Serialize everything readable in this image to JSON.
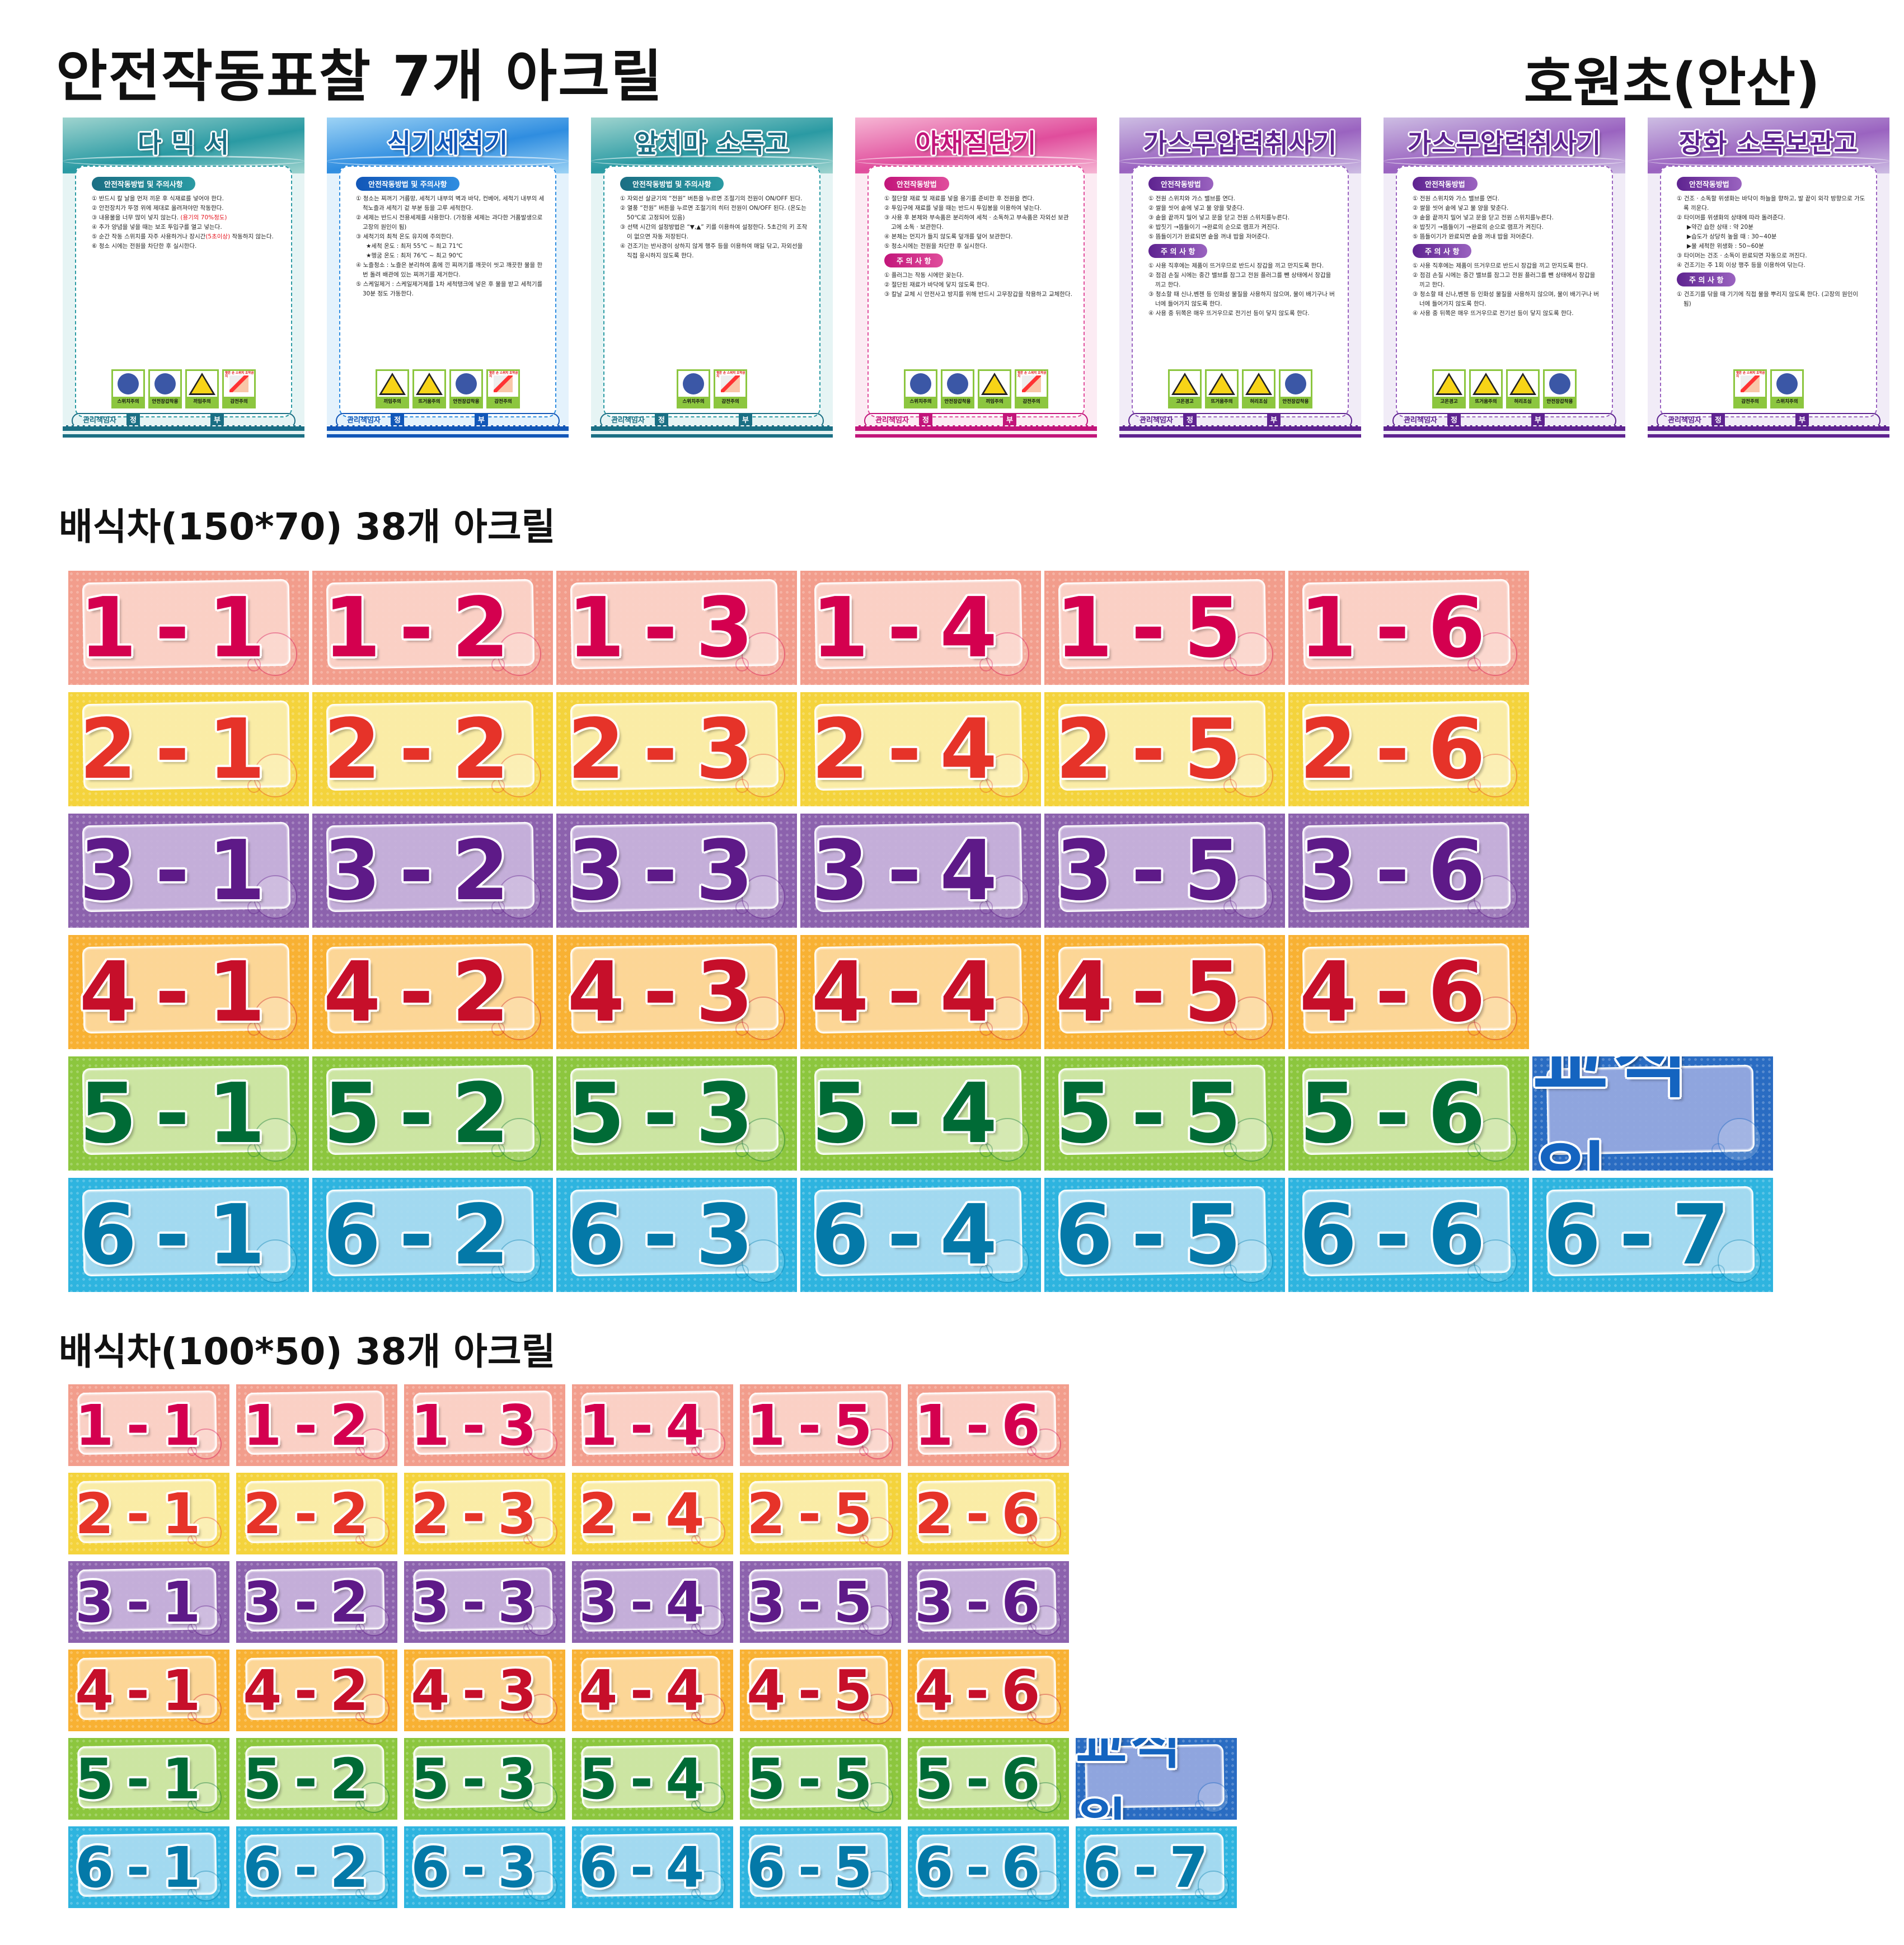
{
  "header": {
    "title": "안전작동표찰 7개 아크릴",
    "school": "호원초(안산)"
  },
  "poster_common": {
    "manager": "관리책임자",
    "primary": "정",
    "secondary": "부"
  },
  "posters": [
    {
      "title": "다 믹 서",
      "theme": {
        "dark": "#1b6f84",
        "mid": "#2a9aa3",
        "light": "#9fd4cf",
        "bg": "#e6f4f4"
      },
      "sections": [
        {
          "heading": "안전작동방법 및 주의사항",
          "items": [
            {
              "text": "① 반드시 칼 날을 먼저 끼운 후 식재료를 넣어야 한다."
            },
            {
              "text": "② 안전장치가 뚜껑 위에 제대로 올려져야만 작동한다."
            },
            {
              "text": "③ 내용물을 너무 많이 넣지 않는다. ",
              "red": "(용기의 70%정도)"
            },
            {
              "text": "④ 추가 양념을 넣을 때는 보조 투입구를 열고 넣는다."
            },
            {
              "text": "⑤ 순간 작동 스위치를 자주 사용하거나 장시간",
              "red": "(5초이상)",
              "tail": " 작동하지 않는다."
            },
            {
              "text": "⑥ 청소 시에는 전원을 차단한 후 실시한다."
            }
          ]
        }
      ],
      "icons": [
        {
          "label": "스위치주의",
          "type": "mandatory"
        },
        {
          "label": "안전장갑착용",
          "type": "mandatory"
        },
        {
          "label": "끼임주의",
          "type": "warning"
        },
        {
          "label": "감전주의",
          "type": "shock",
          "note": "젖은 손 스위치 조작금지"
        }
      ]
    },
    {
      "title": "식기세척기",
      "theme": {
        "dark": "#1257b8",
        "mid": "#2f8de0",
        "light": "#9dd3f5",
        "bg": "#e4f2fc"
      },
      "sections": [
        {
          "heading": "안전작동방법 및 주의사항",
          "items": [
            {
              "text": "① 청소는 찌꺼기 거름망, 세척기 내부의 벽과 바닥, 컨베어, 세척기 내부의 세척노즐과 세척기 겉 부분 등을 고루 세척한다."
            },
            {
              "text": "② 세제는 반드시 전용세제를 사용한다. (가정용 세제는 과다한 거품발생으로 고장의 원인이 됨)"
            },
            {
              "text": "③ 세척기의 최적 온도 유지에 주의한다."
            },
            {
              "text": "★세척 온도 : 최저 55℃ ~ 최고 71℃",
              "sub": true
            },
            {
              "text": "★헹굼 온도 : 최저 76℃ ~ 최고 90℃",
              "sub": true
            },
            {
              "text": "④ 노즐청소 : 노즐은 분리하여 홈에 낀 찌꺼기를 깨끗이 씻고 깨끗한 물을 한번 돌려 배관에 있는 찌꺼기를 제거한다."
            },
            {
              "text": "⑤ 스케일제거 : 스케일제거제를 1차 세척탱크에 넣은 후 물을 받고 세척기를 30분 정도 가동한다."
            }
          ]
        }
      ],
      "icons": [
        {
          "label": "끼임주의",
          "type": "warning"
        },
        {
          "label": "뜨거움주의",
          "type": "warning"
        },
        {
          "label": "안전장갑착용",
          "type": "mandatory"
        },
        {
          "label": "감전주의",
          "type": "shock",
          "note": "젖은 손 스위치 조작금지"
        }
      ]
    },
    {
      "title": "앞치마 소독고",
      "theme": {
        "dark": "#1b6f84",
        "mid": "#2a9aa3",
        "light": "#9fd4cf",
        "bg": "#e6f4f4"
      },
      "sections": [
        {
          "heading": "안전작동방법 및 주의사항",
          "items": [
            {
              "text": "① 자외선 살균기의 “전원” 버튼을 누르면 조절기의 전원이 ON/OFF 된다."
            },
            {
              "text": "② 열풍 “전원” 버튼을 누르면 조절기의 히터 전원이 ON/OFF 된다. (온도는 50℃로 고정되어 있음)"
            },
            {
              "text": "③ 선택 시간의 설정방법은 “▼,▲” 키를 이용하여 설정한다. 5초간의 키 조작이 없으면 자동 저장된다."
            },
            {
              "text": "④ 건조기는 반사경이 상하지 않게 행주 등을 이용하여 매일 닦고, 자외선을 직접 응시하지 않도록 한다."
            }
          ]
        }
      ],
      "icons": [
        {
          "label": "스위치주의",
          "type": "mandatory"
        },
        {
          "label": "감전주의",
          "type": "shock",
          "note": "젖은 손 스위치 조작금지"
        }
      ]
    },
    {
      "title": "야채절단기",
      "theme": {
        "dark": "#c2157a",
        "mid": "#e04d9c",
        "light": "#f6b6d4",
        "bg": "#fcebf3"
      },
      "sections": [
        {
          "heading": "안전작동방법",
          "items": [
            {
              "text": "① 절단할 재료 및 재료를 넣을 용기를 준비한 후 전원을 켠다."
            },
            {
              "text": "② 투입구에 재료를 넣을 때는 반드시 투입봉을 이용하여 넣는다."
            },
            {
              "text": "③ 사용 후 본체와 부속품은 분리하여 세척 · 소독하고 부속품은 자외선 보관고에 소독 · 보관한다."
            },
            {
              "text": "④ 본체는 먼지가 들지 않도록 덮개를 덮어 보관한다."
            },
            {
              "text": "⑤ 청소시에는 전원을 차단한 후 실시한다."
            }
          ]
        },
        {
          "heading": "주 의 사 항",
          "items": [
            {
              "text": "① 플러그는 작동 시에만 꽂는다."
            },
            {
              "text": "② 절단된 재료가 바닥에 닿지 않도록 한다."
            },
            {
              "text": "③ 칼날 교체 시 안전사고 방지를 위해 반드시 고무장갑을 착용하고 교체한다."
            }
          ]
        }
      ],
      "icons": [
        {
          "label": "스위치주의",
          "type": "mandatory"
        },
        {
          "label": "안전장갑착용",
          "type": "mandatory"
        },
        {
          "label": "끼임주의",
          "type": "warning"
        },
        {
          "label": "감전주의",
          "type": "shock",
          "note": "젖은 손 스위치 조작금지"
        }
      ]
    },
    {
      "title": "가스무압력취사기",
      "theme": {
        "dark": "#5e2390",
        "mid": "#9a63c0",
        "light": "#cdbde3",
        "bg": "#f1ecf7"
      },
      "sections": [
        {
          "heading": "안전작동방법",
          "items": [
            {
              "text": "① 전원 스위치와 가스 밸브를 연다."
            },
            {
              "text": "② 쌀을 씻어 솥에 넣고 물 양을 맞춘다."
            },
            {
              "text": "③ 솥을 끝까지 밀어 넣고 문을 닫고 전원 스위치를누른다."
            },
            {
              "text": "④ 밥짓기 →뜸들이기 →완료의 순으로 램프가 켜진다."
            },
            {
              "text": "⑤ 뜸들이기가 완료되면 솥을 꺼내 밥을 저어준다."
            }
          ]
        },
        {
          "heading": "주 의 사 항",
          "items": [
            {
              "text": "① 사용 직후에는 제품이 뜨거우므로 반드시 장갑을 끼고 만지도록 한다."
            },
            {
              "text": "② 점검 손질 시에는 중간 밸브를 잠그고 전원 플러그를 뺀 상태에서 장갑을 끼고 한다."
            },
            {
              "text": "③ 청소할 때 신나,벤젠 등 인화성 물질을 사용하지 않으며, 물이 배기구나 버너에 들어가지 않도록 한다."
            },
            {
              "text": "④ 사용 중 뒤쪽은 매우 뜨거우므로 전기선 등이 닿지 않도록 한다."
            }
          ]
        }
      ],
      "icons": [
        {
          "label": "고온경고",
          "type": "warning"
        },
        {
          "label": "뜨거움주의",
          "type": "warning"
        },
        {
          "label": "허리조심",
          "type": "warning"
        },
        {
          "label": "안전장갑착용",
          "type": "mandatory"
        }
      ]
    },
    {
      "title": "가스무압력취사기",
      "theme": {
        "dark": "#5e2390",
        "mid": "#9a63c0",
        "light": "#cdbde3",
        "bg": "#f1ecf7"
      },
      "sections": [
        {
          "heading": "안전작동방법",
          "items": [
            {
              "text": "① 전원 스위치와 가스 밸브를 연다."
            },
            {
              "text": "② 쌀을 씻어 솥에 넣고 물 양을 맞춘다."
            },
            {
              "text": "③ 솥을 끝까지 밀어 넣고 문을 닫고 전원 스위치를누른다."
            },
            {
              "text": "④ 밥짓기 →뜸들이기 →완료의 순으로 램프가 켜진다."
            },
            {
              "text": "⑤ 뜸들이기가 완료되면 솥을 꺼내 밥을 저어준다."
            }
          ]
        },
        {
          "heading": "주 의 사 항",
          "items": [
            {
              "text": "① 사용 직후에는 제품이 뜨거우므로 반드시 장갑을 끼고 만지도록 한다."
            },
            {
              "text": "② 점검 손질 시에는 중간 밸브를 잠그고 전원 플러그를 뺀 상태에서 장갑을 끼고 한다."
            },
            {
              "text": "③ 청소할 때 신나,벤젠 등 인화성 물질을 사용하지 않으며, 물이 배기구나 버너에 들어가지 않도록 한다."
            },
            {
              "text": "④ 사용 중 뒤쪽은 매우 뜨거우므로 전기선 등이 닿지 않도록 한다."
            }
          ]
        }
      ],
      "icons": [
        {
          "label": "고온경고",
          "type": "warning"
        },
        {
          "label": "뜨거움주의",
          "type": "warning"
        },
        {
          "label": "허리조심",
          "type": "warning"
        },
        {
          "label": "안전장갑착용",
          "type": "mandatory"
        }
      ]
    },
    {
      "title": "장화 소독보관고",
      "theme": {
        "dark": "#5e2390",
        "mid": "#9a63c0",
        "light": "#cdbde3",
        "bg": "#f1ecf7"
      },
      "sections": [
        {
          "heading": "안전작동방법",
          "items": [
            {
              "text": "① 건조 · 소독할 위생화는 바닥이 하늘을 향하고, 발 끝이 외각 방향으로 가도록 끼운다."
            },
            {
              "text": "② 타이머를 위생화의 상태에 따라 돌려준다."
            },
            {
              "text": "▶약간 습한 상태 : 약 20분",
              "sub": true
            },
            {
              "text": "▶습도가 상당히 높을 때 : 30~40분",
              "sub": true
            },
            {
              "text": "▶물 세척한 위생화 : 50~60분",
              "sub": true
            },
            {
              "text": "③ 타이머는 건조 · 소독이 완료되면 자동으로 꺼진다."
            },
            {
              "text": "④ 건조기는 주 1회 이상 행주 등을 이용하여 닦는다."
            }
          ]
        },
        {
          "heading": "주 의 사 항",
          "items": [
            {
              "text": "① 건조기를 닦을 때 기기에 직접 물을 뿌리지 않도록 한다. (고장의 원인이 됨)"
            }
          ]
        }
      ],
      "icons": [
        {
          "label": "감전주의",
          "type": "shock",
          "note": "젖은 손 스위치 조작금지"
        },
        {
          "label": "스위치주의",
          "type": "mandatory"
        }
      ]
    }
  ],
  "themes": {
    "r1": {
      "bg": "#f29d8c",
      "in": "#fbd3c9",
      "tx": "#d4004f"
    },
    "r2": {
      "bg": "#f4d33c",
      "in": "#fbeeac",
      "tx": "#e63329"
    },
    "r3": {
      "bg": "#8c62ad",
      "in": "#c8b3dc",
      "tx": "#5e1a88"
    },
    "r4": {
      "bg": "#f8b133",
      "in": "#fdd89c",
      "tx": "#c60f2a"
    },
    "r5": {
      "bg": "#8cc63e",
      "in": "#d0e7a8",
      "tx": "#006b36"
    },
    "r6": {
      "bg": "#2eb4df",
      "in": "#a9dcf1",
      "tx": "#0479a8"
    },
    "staff": {
      "bg": "#2a6cc2",
      "in": "#95a9e0",
      "tx": "#1464c0"
    }
  },
  "large_signs": {
    "label": "배식차(150*70) 38개 아크릴",
    "rows": [
      {
        "theme": "r1",
        "cells": [
          "1-1",
          "1-2",
          "1-3",
          "1-4",
          "1-5",
          "1-6"
        ]
      },
      {
        "theme": "r2",
        "cells": [
          "2-1",
          "2-2",
          "2-3",
          "2-4",
          "2-5",
          "2-6"
        ]
      },
      {
        "theme": "r3",
        "cells": [
          "3-1",
          "3-2",
          "3-3",
          "3-4",
          "3-5",
          "3-6"
        ]
      },
      {
        "theme": "r4",
        "cells": [
          "4-1",
          "4-2",
          "4-3",
          "4-4",
          "4-5",
          "4-6"
        ]
      },
      {
        "theme": "r5",
        "cells": [
          "5-1",
          "5-2",
          "5-3",
          "5-4",
          "5-5",
          "5-6"
        ],
        "extra": {
          "theme": "staff",
          "text": "교직원"
        }
      },
      {
        "theme": "r6",
        "cells": [
          "6-1",
          "6-2",
          "6-3",
          "6-4",
          "6-5",
          "6-6"
        ],
        "extra": {
          "theme": "r6",
          "text": "6-7"
        }
      }
    ]
  },
  "small_signs": {
    "label": "배식차(100*50) 38개 아크릴",
    "rows": [
      {
        "theme": "r1",
        "cells": [
          "1-1",
          "1-2",
          "1-3",
          "1-4",
          "1-5",
          "1-6"
        ]
      },
      {
        "theme": "r2",
        "cells": [
          "2-1",
          "2-2",
          "2-3",
          "2-4",
          "2-5",
          "2-6"
        ]
      },
      {
        "theme": "r3",
        "cells": [
          "3-1",
          "3-2",
          "3-3",
          "3-4",
          "3-5",
          "3-6"
        ]
      },
      {
        "theme": "r4",
        "cells": [
          "4-1",
          "4-2",
          "4-3",
          "4-4",
          "4-5",
          "4-6"
        ]
      },
      {
        "theme": "r5",
        "cells": [
          "5-1",
          "5-2",
          "5-3",
          "5-4",
          "5-5",
          "5-6"
        ],
        "extra": {
          "theme": "staff",
          "text": "교직원"
        }
      },
      {
        "theme": "r6",
        "cells": [
          "6-1",
          "6-2",
          "6-3",
          "6-4",
          "6-5",
          "6-6"
        ],
        "extra": {
          "theme": "r6",
          "text": "6-7"
        }
      }
    ]
  }
}
